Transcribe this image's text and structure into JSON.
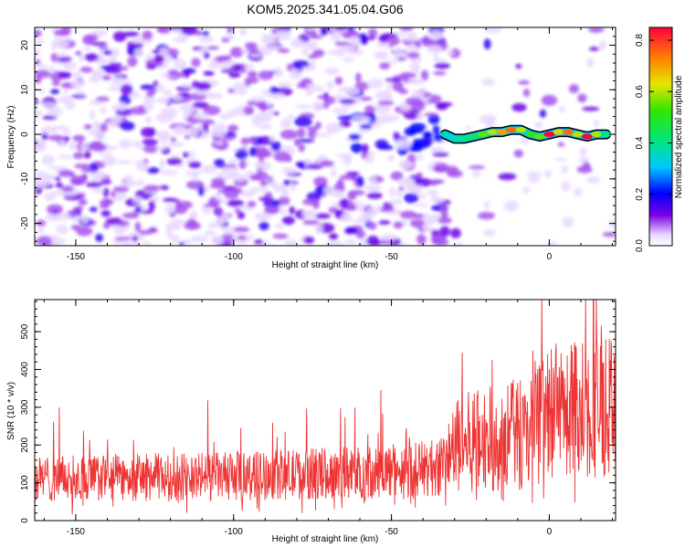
{
  "title": "KOM5.2025.341.05.04.G06",
  "chart_data": [
    {
      "type": "heatmap",
      "name": "spectrogram",
      "xlabel": "Height of straight line (km)",
      "ylabel": "Frequency (Hz)",
      "xlim": [
        -163,
        21
      ],
      "ylim": [
        -25,
        24
      ],
      "xticks": [
        -150,
        -100,
        -50,
        0
      ],
      "xticklabels": [
        "-150",
        "-100",
        "-50",
        "0"
      ],
      "yticks": [
        20,
        10,
        0,
        -10,
        -20
      ],
      "yticklabels": [
        "20",
        "10",
        "0",
        "-10",
        "-20"
      ],
      "colorbar": {
        "label": "Normalized spectral amplitude",
        "range": [
          0,
          0.85
        ],
        "ticks": [
          0.0,
          0.2,
          0.4,
          0.6,
          0.8
        ],
        "ticklabels": [
          "0.0",
          "0.2",
          "0.4",
          "0.6",
          "0.8"
        ],
        "colormap": "rainbow"
      },
      "signal_track": {
        "description_free": true,
        "x": [
          -33,
          -30,
          -27,
          -24,
          -21,
          -18,
          -15,
          -12,
          -9,
          -6,
          -3,
          0,
          3,
          6,
          9,
          12,
          15,
          18
        ],
        "y": [
          0,
          -1,
          -1,
          -0.5,
          0,
          0.5,
          0.5,
          1,
          1,
          0,
          -0.5,
          0,
          0.5,
          0.5,
          0,
          -0.5,
          0,
          0
        ],
        "amplitude": [
          0.35,
          0.38,
          0.42,
          0.45,
          0.55,
          0.6,
          0.7,
          0.75,
          0.6,
          0.5,
          0.55,
          0.85,
          0.65,
          0.75,
          0.6,
          0.85,
          0.6,
          0.4
        ]
      }
    },
    {
      "type": "line",
      "name": "snr",
      "xlabel": "Height of straight line (km)",
      "ylabel": "SNR (10 * v/v)",
      "xlim": [
        -163,
        21
      ],
      "ylim": [
        0,
        585
      ],
      "xticks": [
        -150,
        -100,
        -50,
        0
      ],
      "xticklabels": [
        "-150",
        "-100",
        "-50",
        "0"
      ],
      "yticks": [
        0,
        100,
        200,
        300,
        400,
        500
      ],
      "yticklabels": [
        "0",
        "100",
        "200",
        "300",
        "400",
        "500"
      ],
      "color": "#ee3333",
      "trend": {
        "x": [
          -163,
          -150,
          -130,
          -100,
          -80,
          -60,
          -45,
          -35,
          -30,
          -25,
          -15,
          -5,
          0,
          10,
          21
        ],
        "y": [
          110,
          112,
          115,
          118,
          122,
          128,
          135,
          140,
          190,
          210,
          220,
          240,
          280,
          300,
          330
        ]
      }
    }
  ]
}
